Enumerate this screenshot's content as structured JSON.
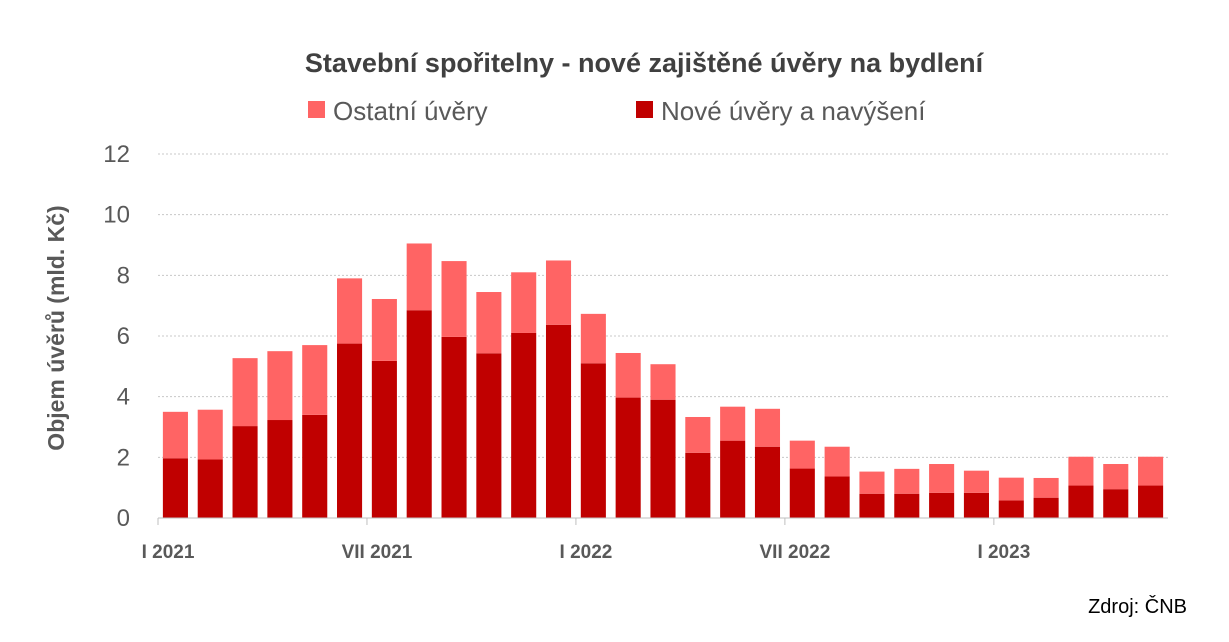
{
  "chart_data": {
    "type": "bar",
    "stacked": true,
    "title": "Stavební spořitelny - nové zajištěné úvěry na bydlení",
    "ylabel": "Objem úvěrů (mld. Kč)",
    "xlabel": "",
    "ylim": [
      0,
      12
    ],
    "yticks": [
      0,
      2,
      4,
      6,
      8,
      10,
      12
    ],
    "grid": true,
    "legend_position": "top",
    "x_tick_labels": [
      {
        "index": 0,
        "label": "I 2021"
      },
      {
        "index": 6,
        "label": "VII 2021"
      },
      {
        "index": 12,
        "label": "I 2022"
      },
      {
        "index": 18,
        "label": "VII 2022"
      },
      {
        "index": 24,
        "label": "I 2023"
      }
    ],
    "categories": [
      "",
      "",
      "",
      "",
      "",
      "",
      "",
      "",
      "",
      "",
      "",
      "",
      "",
      "",
      "",
      "",
      "",
      "",
      "",
      "",
      "",
      "",
      "",
      "",
      "",
      "",
      "",
      "",
      ""
    ],
    "series": [
      {
        "name": "Nové úvěry a navýšení",
        "color": "#c00000",
        "values": [
          1.97,
          1.93,
          3.03,
          3.23,
          3.4,
          5.75,
          5.18,
          6.85,
          5.97,
          5.43,
          6.1,
          6.37,
          5.1,
          3.97,
          3.9,
          2.15,
          2.55,
          2.35,
          1.63,
          1.37,
          0.8,
          0.8,
          0.83,
          0.83,
          0.58,
          0.67,
          1.07,
          0.95,
          1.07
        ]
      },
      {
        "name": "Ostatní úvěry",
        "color": "#ff6464",
        "values": [
          1.53,
          1.64,
          2.24,
          2.27,
          2.3,
          2.15,
          2.04,
          2.2,
          2.5,
          2.02,
          2.0,
          2.12,
          1.63,
          1.47,
          1.17,
          1.18,
          1.12,
          1.25,
          0.92,
          0.98,
          0.73,
          0.82,
          0.95,
          0.73,
          0.75,
          0.65,
          0.95,
          0.83,
          0.95
        ]
      }
    ],
    "legend_order": [
      "Ostatní úvěry",
      "Nové úvěry a navýšení"
    ],
    "source": "Zdroj: ČNB"
  }
}
